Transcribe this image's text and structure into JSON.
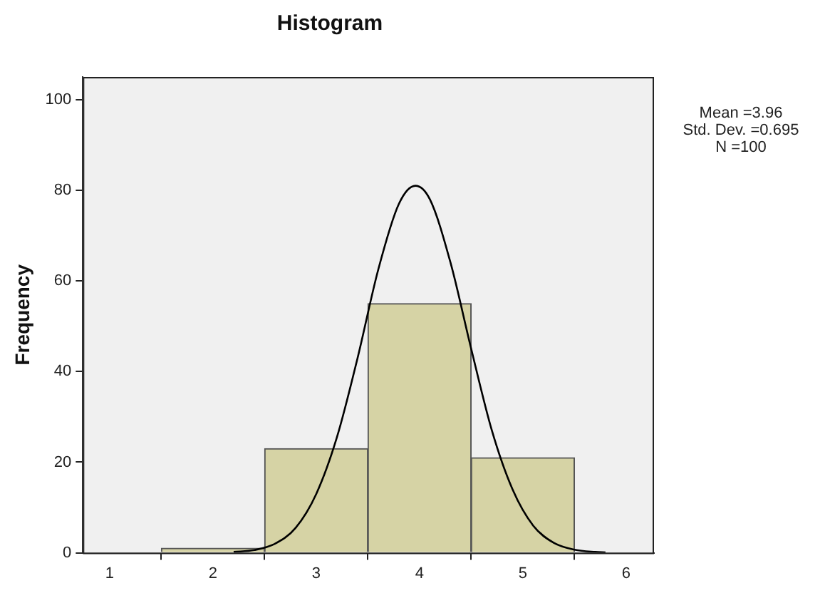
{
  "chart_data": {
    "type": "histogram",
    "title": "Histogram",
    "ylabel": "Frequency",
    "bins": [
      1.5,
      2.5,
      3.5,
      4.5,
      5.5
    ],
    "values": [
      1,
      23,
      55,
      21
    ],
    "color": "#d6d3a5",
    "xlim": [
      0.74,
      6.27
    ],
    "xticks": [
      1,
      2,
      3,
      4,
      5,
      6
    ],
    "ylim": [
      0,
      105
    ],
    "yticks": [
      0,
      20,
      40,
      60,
      80,
      100
    ],
    "marker": "none",
    "series": [
      {
        "type": "line",
        "color": "#000000",
        "x": [
          2.2,
          2.4,
          2.6,
          2.8,
          3.0,
          3.2,
          3.4,
          3.6,
          3.8,
          3.96,
          4.1,
          4.3,
          4.5,
          4.7,
          4.9,
          5.1,
          5.3,
          5.5,
          5.7,
          5.8
        ],
        "values": [
          0.2,
          0.6,
          2,
          5.5,
          13,
          25.5,
          43,
          62.5,
          77,
          81,
          78,
          64,
          45,
          27,
          14,
          6,
          2.2,
          0.7,
          0.2,
          0.1
        ]
      }
    ],
    "annotations": [
      "Mean =3.96",
      "Std. Dev. =0.695",
      "N =100"
    ]
  }
}
